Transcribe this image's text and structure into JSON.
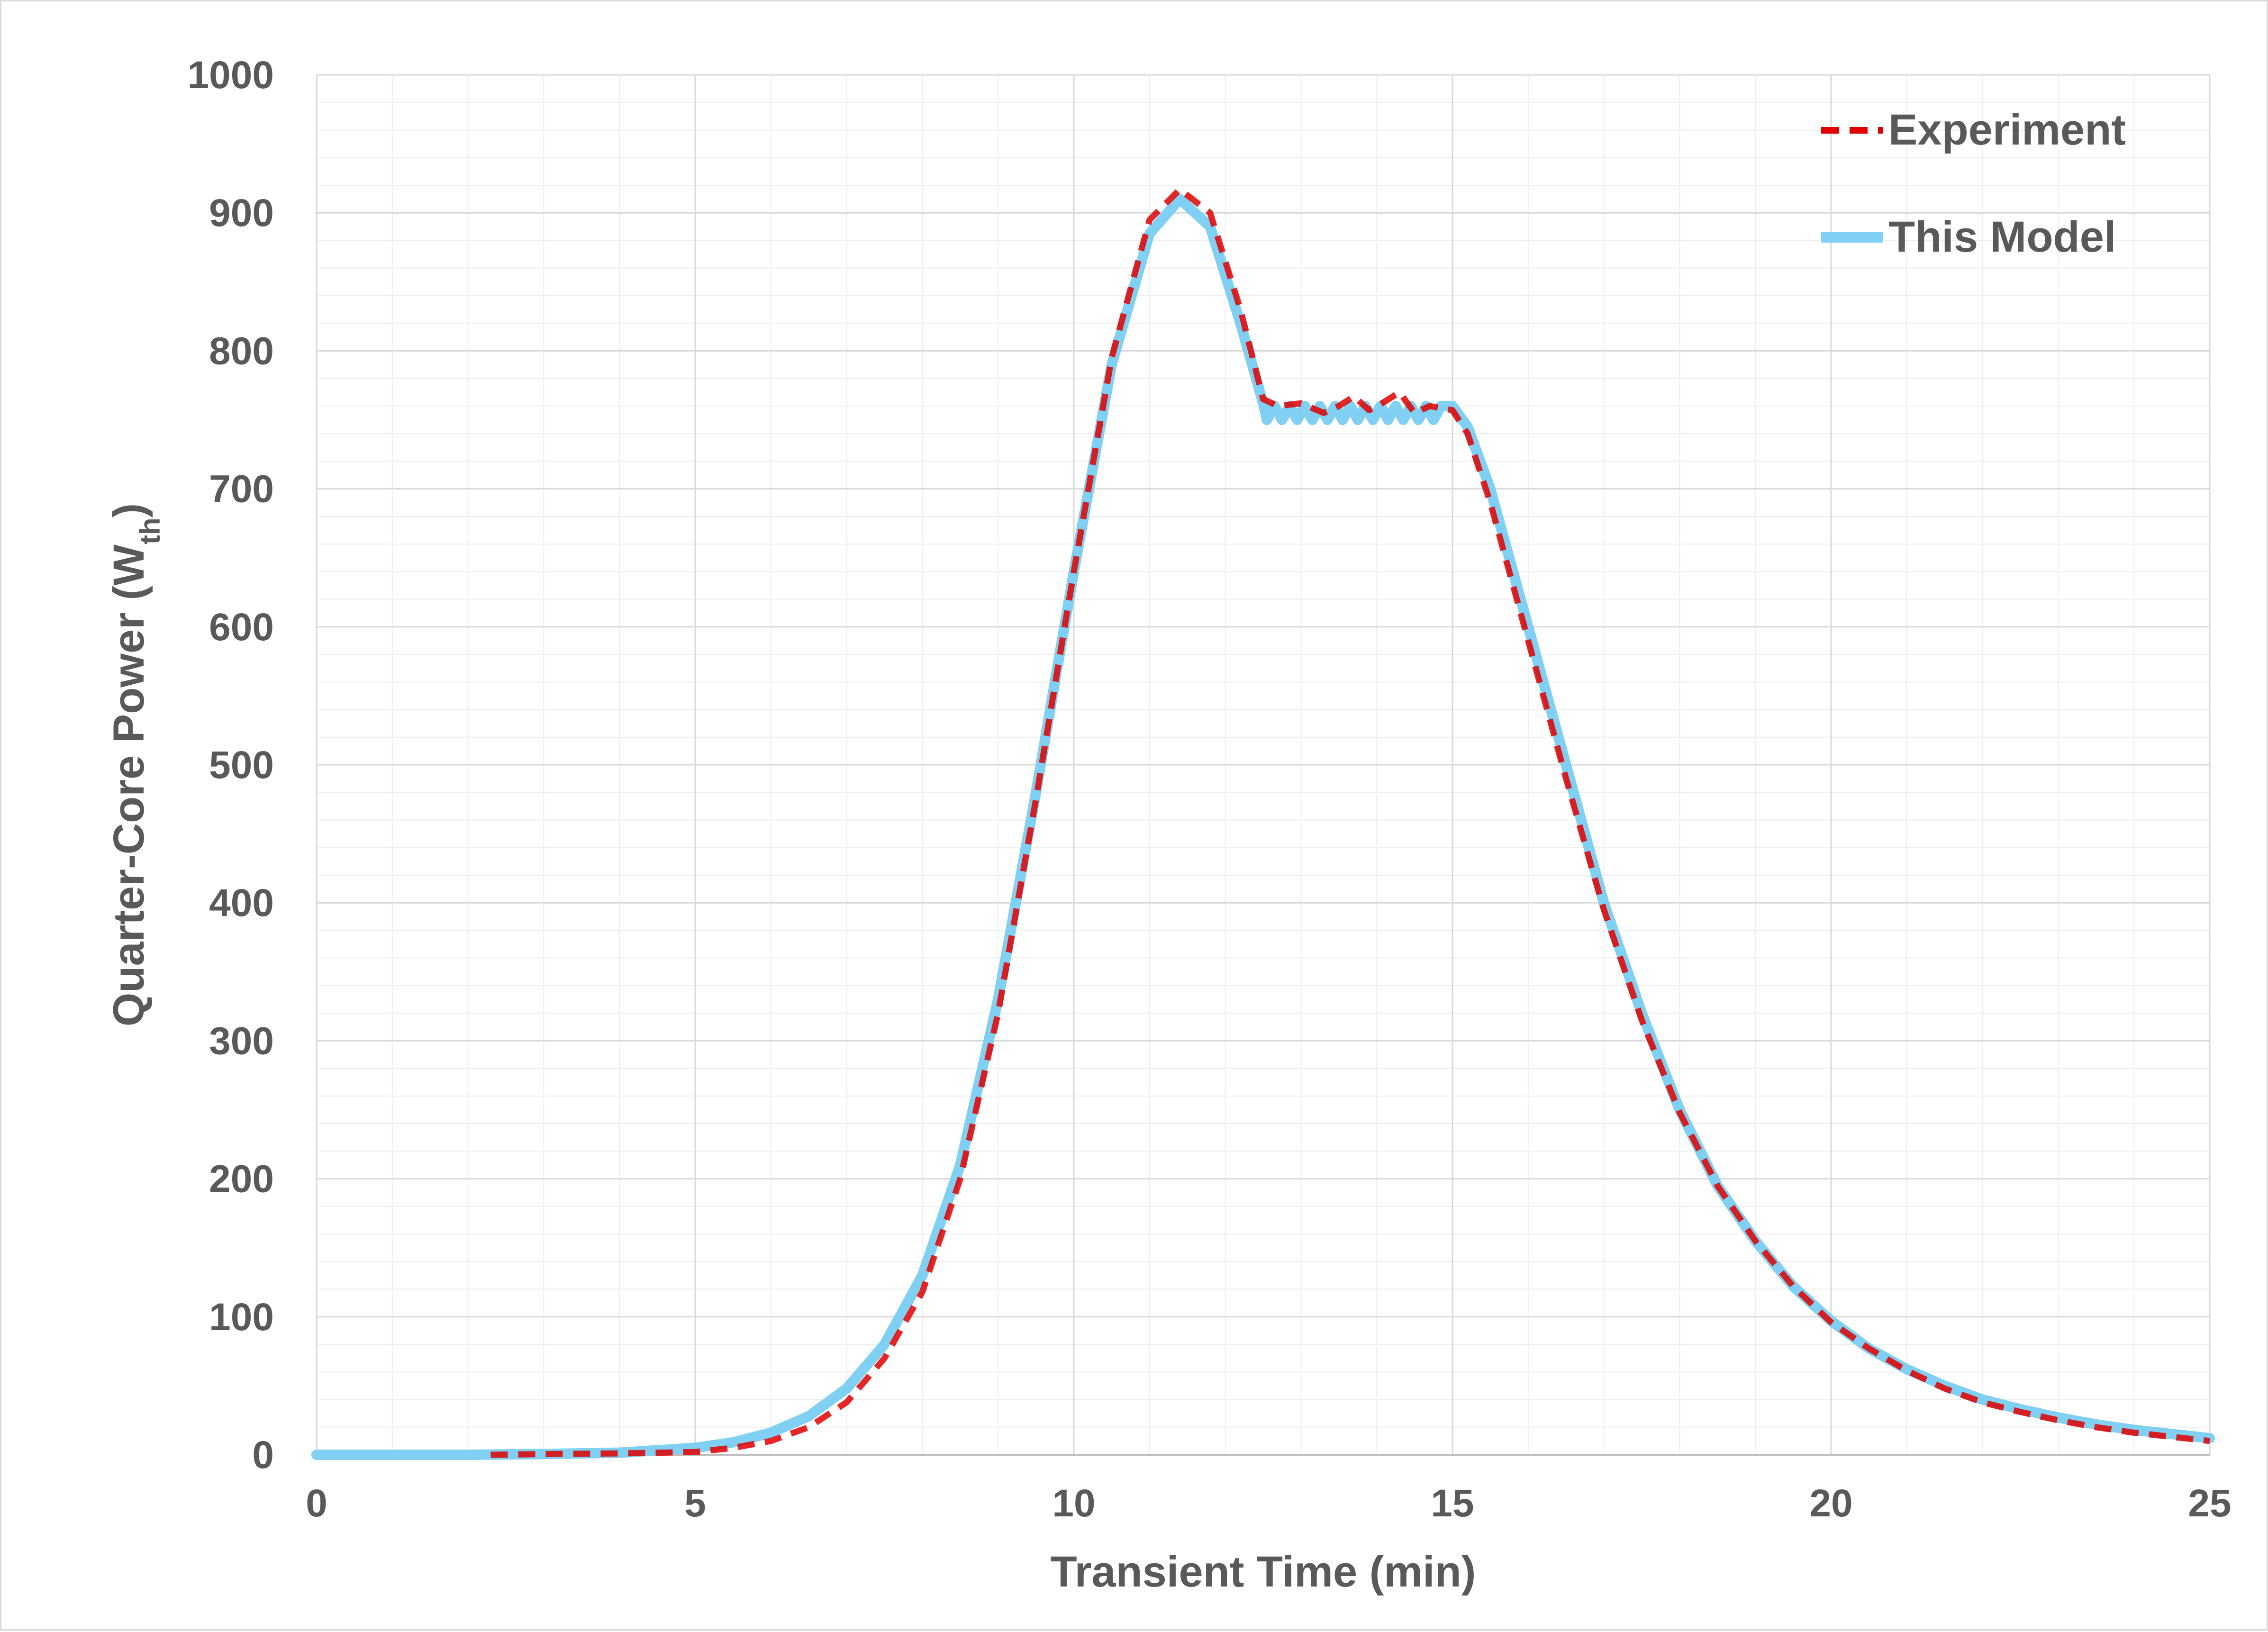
{
  "chart_data": {
    "type": "line",
    "xlabel": "Transient Time (min)",
    "ylabel": "Quarter-Core Power (W",
    "ylabel_sub": "th",
    "ylabel_end": ")",
    "xlim": [
      0,
      25
    ],
    "ylim": [
      0,
      1000
    ],
    "x_ticks": [
      0,
      5,
      10,
      15,
      20,
      25
    ],
    "y_ticks": [
      0,
      100,
      200,
      300,
      400,
      500,
      600,
      700,
      800,
      900,
      1000
    ],
    "grid": true,
    "legend_position": "top-right",
    "series": [
      {
        "name": "This Model",
        "color": "#7fd0f2",
        "style": "solid",
        "points": [
          [
            0,
            0
          ],
          [
            2,
            0
          ],
          [
            3,
            0.5
          ],
          [
            4,
            1.5
          ],
          [
            5,
            5
          ],
          [
            5.5,
            9
          ],
          [
            6,
            16
          ],
          [
            6.5,
            28
          ],
          [
            7,
            48
          ],
          [
            7.5,
            80
          ],
          [
            8,
            130
          ],
          [
            8.5,
            210
          ],
          [
            9,
            330
          ],
          [
            9.5,
            480
          ],
          [
            10,
            640
          ],
          [
            10.5,
            790
          ],
          [
            11,
            885
          ],
          [
            11.4,
            910
          ],
          [
            11.8,
            890
          ],
          [
            12.2,
            820
          ],
          [
            12.5,
            762
          ],
          [
            12.55,
            750
          ],
          [
            12.65,
            760
          ],
          [
            12.75,
            750
          ],
          [
            12.85,
            760
          ],
          [
            12.95,
            750
          ],
          [
            13.05,
            760
          ],
          [
            13.15,
            750
          ],
          [
            13.25,
            760
          ],
          [
            13.35,
            750
          ],
          [
            13.45,
            760
          ],
          [
            13.55,
            750
          ],
          [
            13.65,
            760
          ],
          [
            13.75,
            750
          ],
          [
            13.85,
            760
          ],
          [
            13.95,
            750
          ],
          [
            14.05,
            760
          ],
          [
            14.15,
            750
          ],
          [
            14.25,
            760
          ],
          [
            14.35,
            750
          ],
          [
            14.45,
            760
          ],
          [
            14.55,
            750
          ],
          [
            14.65,
            760
          ],
          [
            14.75,
            750
          ],
          [
            14.85,
            760
          ],
          [
            15,
            760
          ],
          [
            15.2,
            745
          ],
          [
            15.5,
            700
          ],
          [
            16,
            600
          ],
          [
            16.5,
            500
          ],
          [
            17,
            400
          ],
          [
            17.5,
            320
          ],
          [
            18,
            250
          ],
          [
            18.5,
            195
          ],
          [
            19,
            155
          ],
          [
            19.5,
            122
          ],
          [
            20,
            97
          ],
          [
            20.5,
            77
          ],
          [
            21,
            62
          ],
          [
            21.5,
            50
          ],
          [
            22,
            40
          ],
          [
            22.5,
            33
          ],
          [
            23,
            27
          ],
          [
            23.5,
            22
          ],
          [
            24,
            18
          ],
          [
            24.5,
            15
          ],
          [
            25,
            12
          ]
        ]
      },
      {
        "name": "Experiment",
        "color": "#e00000",
        "style": "dashed",
        "points": [
          [
            2.3,
            0
          ],
          [
            3,
            0.5
          ],
          [
            4,
            1
          ],
          [
            5,
            2
          ],
          [
            5.5,
            5
          ],
          [
            6,
            10
          ],
          [
            6.5,
            20
          ],
          [
            7,
            38
          ],
          [
            7.5,
            70
          ],
          [
            8,
            118
          ],
          [
            8.5,
            200
          ],
          [
            9,
            320
          ],
          [
            9.5,
            475
          ],
          [
            10,
            640
          ],
          [
            10.5,
            795
          ],
          [
            11,
            895
          ],
          [
            11.4,
            917
          ],
          [
            11.8,
            900
          ],
          [
            12.2,
            830
          ],
          [
            12.5,
            765
          ],
          [
            12.7,
            760
          ],
          [
            13,
            762
          ],
          [
            13.3,
            755
          ],
          [
            13.5,
            760
          ],
          [
            13.7,
            767
          ],
          [
            13.9,
            757
          ],
          [
            14.1,
            763
          ],
          [
            14.3,
            770
          ],
          [
            14.5,
            755
          ],
          [
            14.7,
            760
          ],
          [
            15,
            757
          ],
          [
            15.2,
            740
          ],
          [
            15.5,
            690
          ],
          [
            16,
            590
          ],
          [
            16.5,
            490
          ],
          [
            17,
            395
          ],
          [
            17.5,
            315
          ],
          [
            18,
            248
          ],
          [
            18.5,
            195
          ],
          [
            19,
            155
          ],
          [
            19.5,
            122
          ],
          [
            20,
            96
          ],
          [
            20.5,
            77
          ],
          [
            21,
            61
          ],
          [
            21.5,
            48
          ],
          [
            22,
            38
          ],
          [
            22.5,
            31
          ],
          [
            23,
            25
          ],
          [
            23.5,
            20
          ],
          [
            24,
            16
          ],
          [
            24.5,
            13
          ],
          [
            25,
            10
          ]
        ]
      }
    ],
    "legend": [
      {
        "label": "Experiment",
        "color": "#e00000",
        "style": "dashed"
      },
      {
        "label": "This Model",
        "color": "#7fd0f2",
        "style": "solid"
      }
    ]
  }
}
